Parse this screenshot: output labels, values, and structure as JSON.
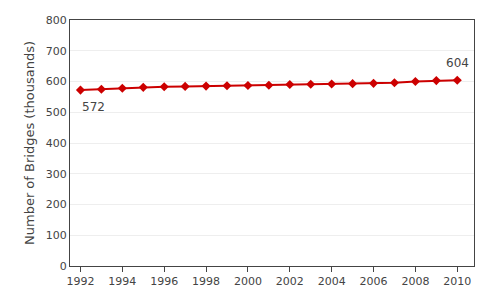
{
  "chart_data": {
    "type": "line",
    "x": [
      1992,
      1993,
      1994,
      1995,
      1996,
      1997,
      1998,
      1999,
      2000,
      2001,
      2002,
      2003,
      2004,
      2005,
      2006,
      2007,
      2008,
      2009,
      2010
    ],
    "values": [
      572,
      575,
      578,
      581,
      583,
      584,
      585,
      586,
      587,
      588,
      590,
      591,
      592,
      593,
      594,
      596,
      600,
      603,
      604
    ],
    "color": "#cc0000",
    "marker": "diamond",
    "y_label": "Number of Bridges (thousands)",
    "xlim": [
      1991.5,
      2010.8
    ],
    "xticks": [
      1992,
      1994,
      1996,
      1998,
      2000,
      2002,
      2004,
      2006,
      2008,
      2010
    ],
    "ylim": [
      0,
      800
    ],
    "yticks": [
      0,
      100,
      200,
      300,
      400,
      500,
      600,
      700,
      800
    ],
    "grid": "y",
    "annotations": [
      "572",
      "604"
    ]
  }
}
